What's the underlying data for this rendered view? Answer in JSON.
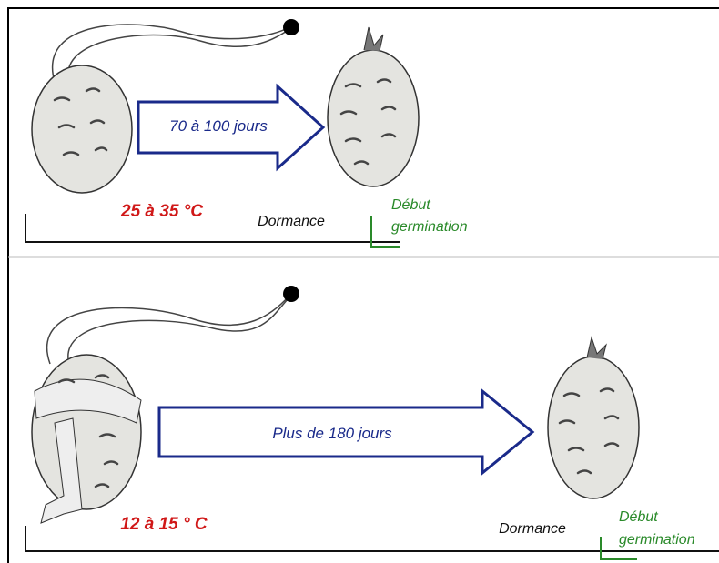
{
  "panels": [
    {
      "duration": "70 à 100 jours",
      "temperature": "25 à 35 °C",
      "phase": "Dormance",
      "end_label": [
        "Début",
        "germination"
      ]
    },
    {
      "duration": "Plus de 180 jours",
      "temperature": "12 à 15 ° C",
      "phase": "Dormance",
      "end_label": [
        "Début",
        "germination"
      ]
    }
  ]
}
